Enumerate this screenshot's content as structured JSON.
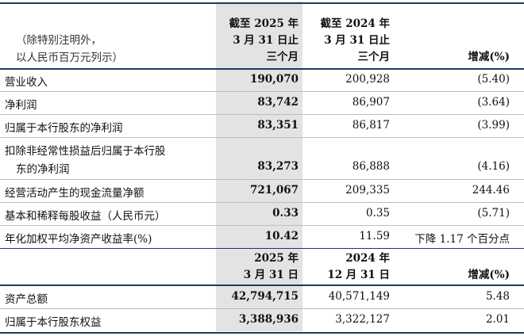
{
  "header_top": {
    "note_line1": "（除特别注明外，",
    "note_line2": "以人民币百万元列示）",
    "col1": [
      "截至 2025 年",
      "3 月 31 日止",
      "三个月"
    ],
    "col2": [
      "截至 2024 年",
      "3 月 31 日止",
      "三个月"
    ],
    "col3": "增减(%)"
  },
  "rows": [
    {
      "label": "营业收入",
      "v1": "190,070",
      "v2": "200,928",
      "v3": "(5.40)"
    },
    {
      "label": "净利润",
      "v1": "83,742",
      "v2": "86,907",
      "v3": "(3.64)"
    },
    {
      "label": "归属于本行股东的净利润",
      "v1": "83,351",
      "v2": "86,817",
      "v3": "(3.99)"
    },
    {
      "label": "扣除非经常性损益后归属于本行股",
      "label2": "东的净利润",
      "v1": "83,273",
      "v2": "86,888",
      "v3": "(4.16)"
    },
    {
      "label": "经营活动产生的现金流量净额",
      "v1": "721,067",
      "v2": "209,335",
      "v3": "244.46"
    },
    {
      "label": "基本和稀释每股收益（人民币元）",
      "v1": "0.33",
      "v2": "0.35",
      "v3": "(5.71)"
    },
    {
      "label": "年化加权平均净资产收益率(%)",
      "v1": "10.42",
      "v2": "11.59",
      "v3": "下降 1.17 个百分点"
    }
  ],
  "header_mid": {
    "col1": [
      "2025 年",
      "3 月 31 日"
    ],
    "col2": [
      "2024 年",
      "12 月 31 日"
    ],
    "col3": "增减(%)"
  },
  "rows2": [
    {
      "label": "资产总额",
      "v1": "42,794,715",
      "v2": "40,571,149",
      "v3": "5.48"
    },
    {
      "label": "归属于本行股东权益",
      "v1": "3,388,936",
      "v2": "3,322,127",
      "v3": "2.01"
    }
  ]
}
